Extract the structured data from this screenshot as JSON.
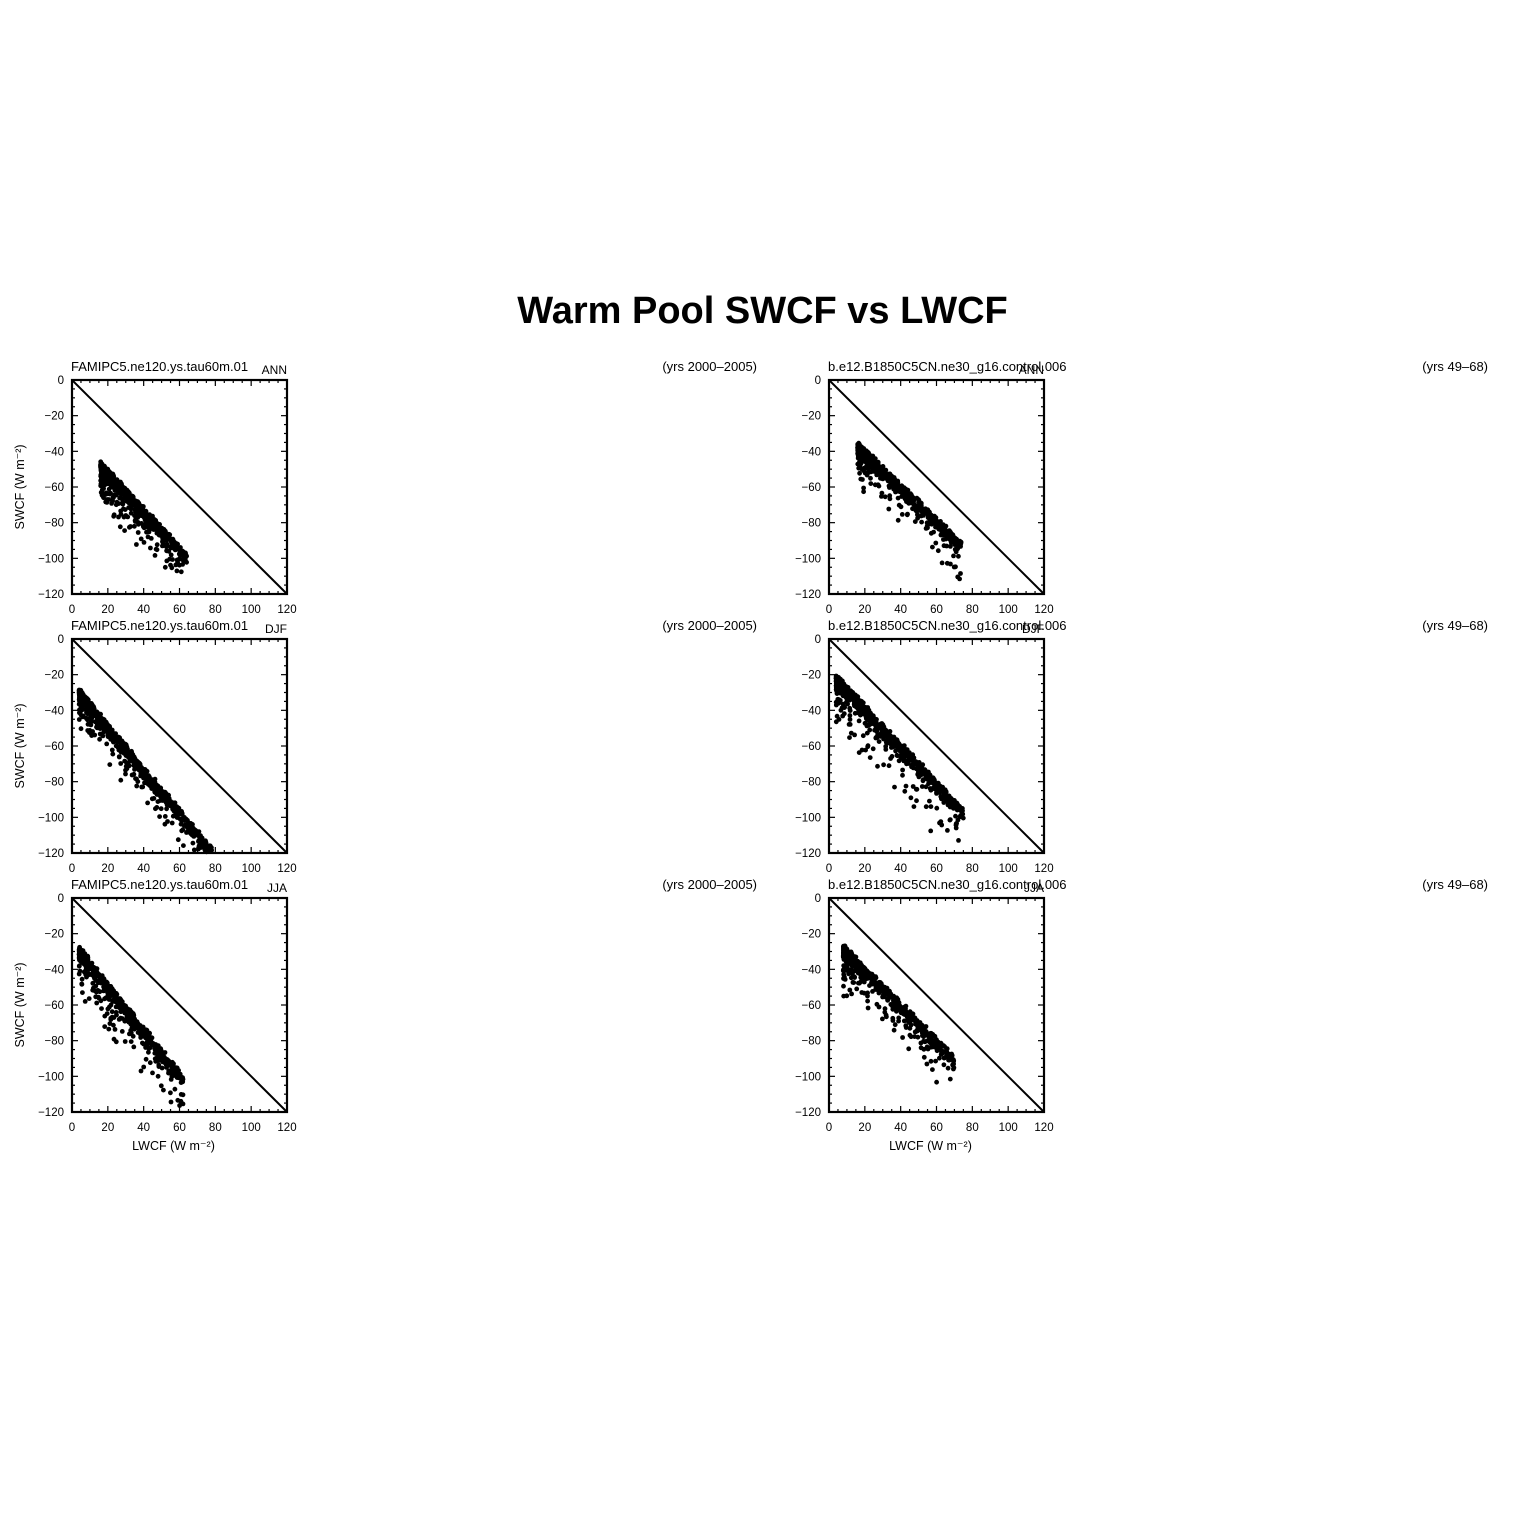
{
  "title": "Warm Pool SWCF vs LWCF",
  "axes": {
    "xlabel": "LWCF (W m⁻²)",
    "ylabel": "SWCF (W m⁻²)",
    "xlim": [
      0,
      120
    ],
    "ylim": [
      -120,
      0
    ],
    "xticks": [
      0,
      20,
      40,
      60,
      80,
      100,
      120
    ],
    "yticks": [
      0,
      -20,
      -40,
      -60,
      -80,
      -100,
      -120
    ]
  },
  "chart_data": [
    {
      "type": "scatter",
      "case": "FAMIPC5.ne120.ys.tau60m.01",
      "season": "ANN",
      "years": "(yrs 2000–2005)",
      "xlim": [
        0,
        120
      ],
      "ylim": [
        -120,
        0
      ],
      "reference_line": {
        "from": [
          0,
          0
        ],
        "to": [
          120,
          -120
        ]
      },
      "cloud": {
        "n": 650,
        "x_range": [
          16,
          64
        ],
        "y_at_x_min": -47,
        "slope": -1.05,
        "spread": 14,
        "skew": 0.65
      }
    },
    {
      "type": "scatter",
      "case": "b.e12.B1850C5CN.ne30_g16.control.006",
      "season": "ANN",
      "years": "(yrs 49–68)",
      "xlim": [
        0,
        120
      ],
      "ylim": [
        -120,
        0
      ],
      "reference_line": {
        "from": [
          0,
          0
        ],
        "to": [
          120,
          -120
        ]
      },
      "cloud": {
        "n": 650,
        "x_range": [
          16,
          74
        ],
        "y_at_x_min": -36,
        "slope": -0.95,
        "spread": 13,
        "skew": 0.75
      }
    },
    {
      "type": "scatter",
      "case": "FAMIPC5.ne120.ys.tau60m.01",
      "season": "DJF",
      "years": "(yrs 2000–2005)",
      "xlim": [
        0,
        120
      ],
      "ylim": [
        -120,
        0
      ],
      "reference_line": {
        "from": [
          0,
          0
        ],
        "to": [
          120,
          -120
        ]
      },
      "cloud": {
        "n": 750,
        "x_range": [
          4,
          78
        ],
        "y_at_x_min": -29,
        "slope": -1.2,
        "spread": 12,
        "skew": 0.6
      }
    },
    {
      "type": "scatter",
      "case": "b.e12.B1850C5CN.ne30_g16.control.006",
      "season": "DJF",
      "years": "(yrs 49–68)",
      "xlim": [
        0,
        120
      ],
      "ylim": [
        -120,
        0
      ],
      "reference_line": {
        "from": [
          0,
          0
        ],
        "to": [
          120,
          -120
        ]
      },
      "cloud": {
        "n": 750,
        "x_range": [
          4,
          75
        ],
        "y_at_x_min": -21,
        "slope": -1.05,
        "spread": 16,
        "skew": 0.8
      }
    },
    {
      "type": "scatter",
      "case": "FAMIPC5.ne120.ys.tau60m.01",
      "season": "JJA",
      "years": "(yrs 2000–2005)",
      "xlim": [
        0,
        120
      ],
      "ylim": [
        -120,
        0
      ],
      "reference_line": {
        "from": [
          0,
          0
        ],
        "to": [
          120,
          -120
        ]
      },
      "cloud": {
        "n": 600,
        "x_range": [
          4,
          62
        ],
        "y_at_x_min": -28,
        "slope": -1.25,
        "spread": 15,
        "skew": 0.6
      }
    },
    {
      "type": "scatter",
      "case": "b.e12.B1850C5CN.ne30_g16.control.006",
      "season": "JJA",
      "years": "(yrs 49–68)",
      "xlim": [
        0,
        120
      ],
      "ylim": [
        -120,
        0
      ],
      "reference_line": {
        "from": [
          0,
          0
        ],
        "to": [
          120,
          -120
        ]
      },
      "cloud": {
        "n": 600,
        "x_range": [
          8,
          70
        ],
        "y_at_x_min": -27,
        "slope": -1.0,
        "spread": 15,
        "skew": 0.75
      }
    }
  ]
}
